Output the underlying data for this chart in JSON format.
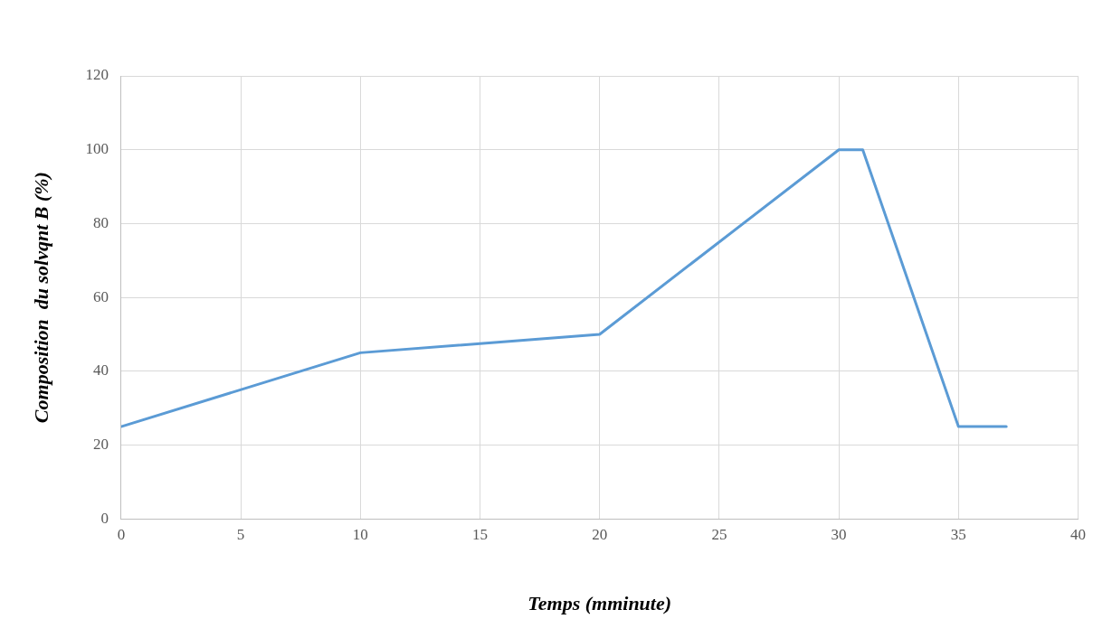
{
  "chart_data": {
    "type": "line",
    "xlabel": "Temps (mminute)",
    "ylabel": "Composition  du solvqnt B (%)",
    "x": [
      0,
      10,
      20,
      30,
      31,
      35,
      37
    ],
    "series": [
      {
        "color": "#5b9bd5",
        "values": [
          25,
          45,
          50,
          100,
          100,
          25,
          25
        ]
      }
    ],
    "xlim": [
      0,
      40
    ],
    "xticks": [
      0,
      5,
      10,
      15,
      20,
      25,
      30,
      35,
      40
    ],
    "ylim": [
      0,
      120
    ],
    "yticks": [
      0,
      20,
      40,
      60,
      80,
      100,
      120
    ],
    "grid": true,
    "legend": false,
    "marker": "none",
    "line_style": "solid"
  }
}
